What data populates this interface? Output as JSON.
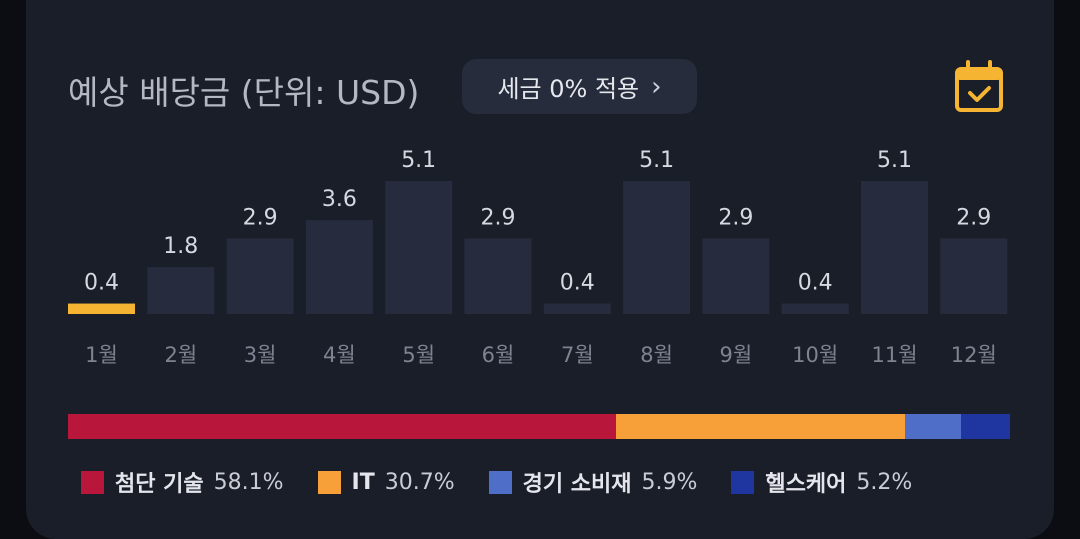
{
  "header": {
    "title": "예상 배당금 (단위: USD)",
    "tax_button_label": "세금 0% 적용",
    "tax_button_chevron": "›"
  },
  "colors": {
    "bar_default": "#262c3d",
    "bar_highlight": "#f5b532",
    "icon_accent": "#f5b532"
  },
  "chart_data": {
    "type": "bar",
    "categories": [
      "1월",
      "2월",
      "3월",
      "4월",
      "5월",
      "6월",
      "7월",
      "8월",
      "9월",
      "10월",
      "11월",
      "12월"
    ],
    "values": [
      0.4,
      1.8,
      2.9,
      3.6,
      5.1,
      2.9,
      0.4,
      5.1,
      2.9,
      0.4,
      5.1,
      2.9
    ],
    "value_labels": [
      "0.4",
      "1.8",
      "2.9",
      "3.6",
      "5.1",
      "2.9",
      "0.4",
      "5.1",
      "2.9",
      "0.4",
      "5.1",
      "2.9"
    ],
    "highlight_index": 0,
    "ylim": [
      0,
      5.1
    ],
    "grid": false,
    "title": "",
    "xlabel": "",
    "ylabel": ""
  },
  "allocation": {
    "segments": [
      {
        "name": "첨단 기술",
        "percent": 58.1,
        "label": "58.1%",
        "color": "#b8163b"
      },
      {
        "name": "IT",
        "percent": 30.7,
        "label": "30.7%",
        "color": "#f7a03a"
      },
      {
        "name": "경기 소비재",
        "percent": 5.9,
        "label": "5.9%",
        "color": "#4f6ec8"
      },
      {
        "name": "헬스케어",
        "percent": 5.2,
        "label": "5.2%",
        "color": "#1f35a0"
      }
    ]
  }
}
